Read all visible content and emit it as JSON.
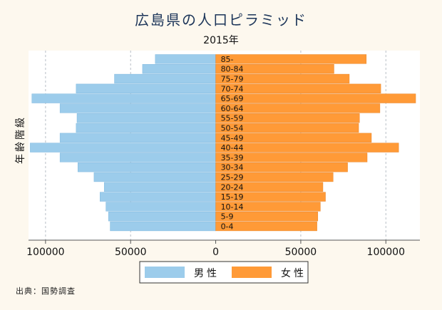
{
  "chart_data": {
    "type": "bar",
    "orientation": "horizontal-back-to-back",
    "title": "広島県の人口ピラミッド",
    "subtitle": "2015年",
    "ylabel": "年齢階級",
    "xlabel": "",
    "categories": [
      "0-4",
      "5-9",
      "10-14",
      "15-19",
      "20-24",
      "25-29",
      "30-34",
      "35-39",
      "40-44",
      "45-49",
      "50-54",
      "55-59",
      "60-64",
      "65-69",
      "70-74",
      "75-79",
      "80-84",
      "85-"
    ],
    "series": [
      {
        "name": "男性",
        "color": "#9ccceb",
        "values": [
          62000,
          63000,
          64500,
          68000,
          65500,
          71500,
          81000,
          91500,
          109000,
          91500,
          82000,
          81500,
          91500,
          108000,
          82000,
          59500,
          43000,
          35500
        ]
      },
      {
        "name": "女性",
        "color": "#ff9a37",
        "values": [
          59500,
          60000,
          61500,
          64500,
          63000,
          69000,
          77500,
          89000,
          107500,
          91500,
          84000,
          84500,
          96500,
          117500,
          97000,
          78500,
          69500,
          88500
        ]
      }
    ],
    "xticks": [
      {
        "value": -100000,
        "label": "100000"
      },
      {
        "value": -50000,
        "label": "50000"
      },
      {
        "value": 0,
        "label": "0"
      },
      {
        "value": 50000,
        "label": "50000"
      },
      {
        "value": 100000,
        "label": "100000"
      }
    ],
    "xlim": [
      -110000,
      120000
    ],
    "grid": true,
    "legend_position": "bottom"
  },
  "footer": {
    "source": "出典：国勢調査"
  },
  "colors": {
    "background": "#fdf8ee",
    "plot_background": "#ffffff",
    "title": "#1c3559"
  }
}
